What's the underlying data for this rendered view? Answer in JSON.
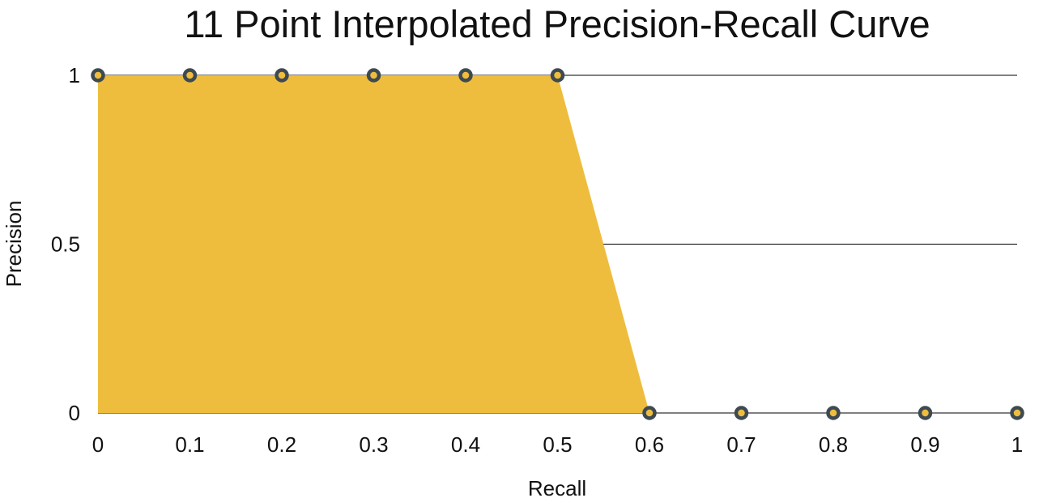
{
  "chart_data": {
    "type": "area",
    "title": "11 Point Interpolated Precision-Recall Curve",
    "xlabel": "Recall",
    "ylabel": "Precision",
    "x": [
      0,
      0.1,
      0.2,
      0.3,
      0.4,
      0.5,
      0.6,
      0.7,
      0.8,
      0.9,
      1
    ],
    "x_tick_labels": [
      "0",
      "0.1",
      "0.2",
      "0.3",
      "0.4",
      "0.5",
      "0.6",
      "0.7",
      "0.8",
      "0.9",
      "1"
    ],
    "y_ticks": [
      0,
      0.5,
      1
    ],
    "y_tick_labels": [
      "0",
      "0.5",
      "1"
    ],
    "series": [
      {
        "values": [
          1,
          1,
          1,
          1,
          1,
          1,
          0,
          0,
          0,
          0,
          0
        ]
      }
    ],
    "xlim": [
      0,
      1
    ],
    "ylim": [
      0,
      1
    ],
    "grid": "horizontal",
    "legend": "none",
    "colors": {
      "fill": "#EEBD3E",
      "marker_outline": "#3E4A52",
      "marker_center": "#EEBD3E",
      "gridline": "#000000"
    }
  }
}
